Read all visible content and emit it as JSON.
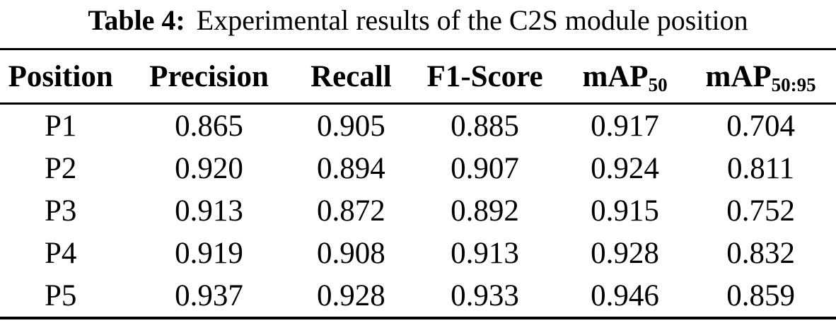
{
  "page": {
    "background_color": "#ffffff",
    "text_color": "#000000",
    "rule_color": "#000000"
  },
  "caption": {
    "label": "Table 4:",
    "text": "Experimental results of the C2S module position"
  },
  "table": {
    "columns": [
      {
        "main": "Position",
        "sub": ""
      },
      {
        "main": "Precision",
        "sub": ""
      },
      {
        "main": "Recall",
        "sub": ""
      },
      {
        "main": "F1-Score",
        "sub": ""
      },
      {
        "main": "mAP",
        "sub": "50"
      },
      {
        "main": "mAP",
        "sub": "50:95"
      }
    ],
    "rows": [
      [
        "P1",
        "0.865",
        "0.905",
        "0.885",
        "0.917",
        "0.704"
      ],
      [
        "P2",
        "0.920",
        "0.894",
        "0.907",
        "0.924",
        "0.811"
      ],
      [
        "P3",
        "0.913",
        "0.872",
        "0.892",
        "0.915",
        "0.752"
      ],
      [
        "P4",
        "0.919",
        "0.908",
        "0.913",
        "0.928",
        "0.832"
      ],
      [
        "P5",
        "0.937",
        "0.928",
        "0.933",
        "0.946",
        "0.859"
      ]
    ]
  }
}
